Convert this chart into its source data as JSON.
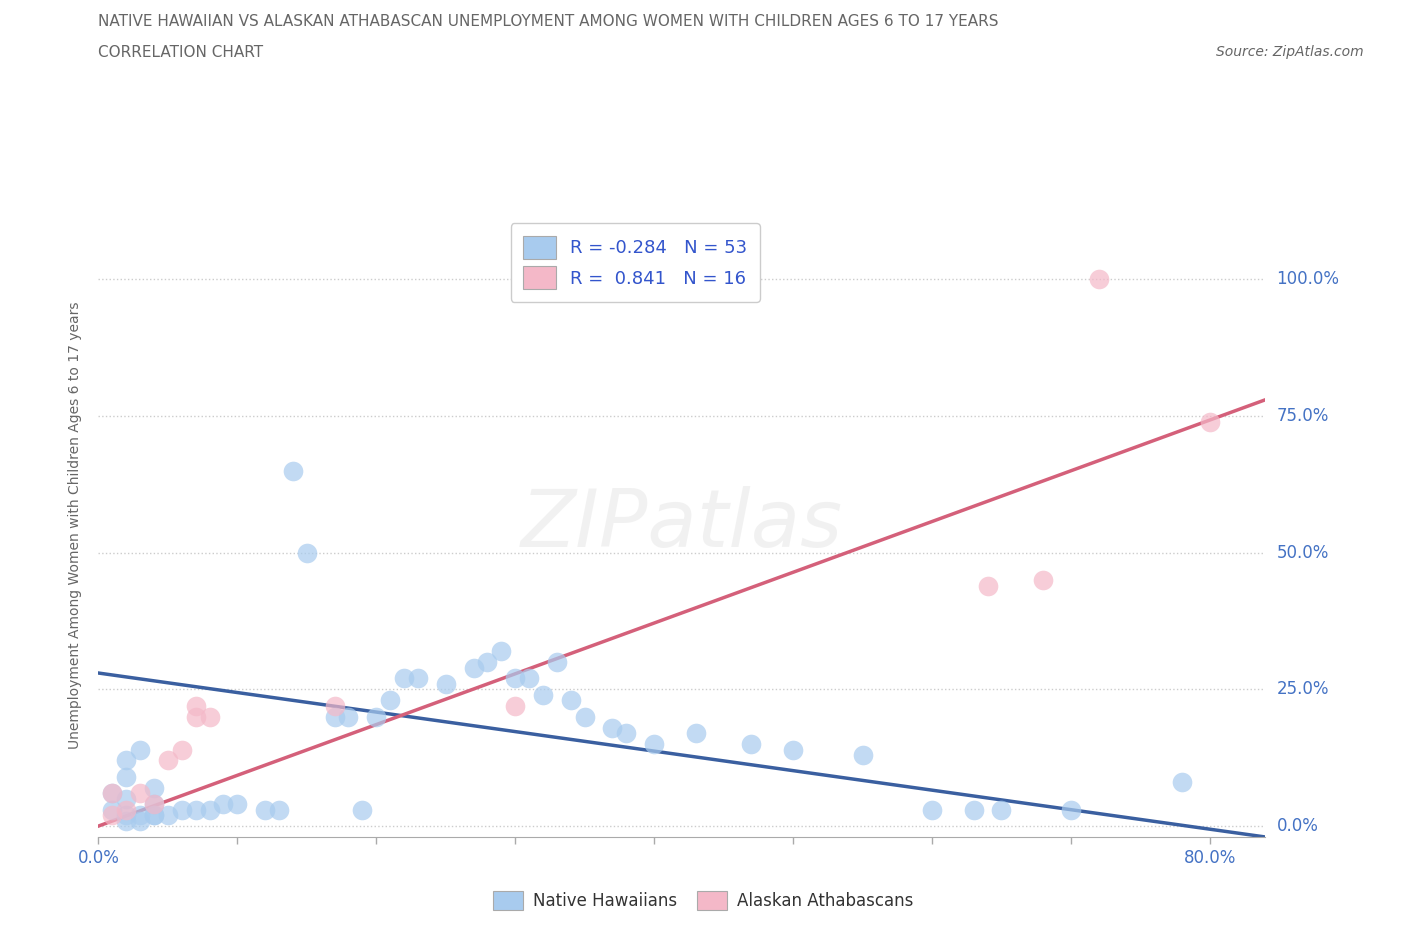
{
  "title_line1": "NATIVE HAWAIIAN VS ALASKAN ATHABASCAN UNEMPLOYMENT AMONG WOMEN WITH CHILDREN AGES 6 TO 17 YEARS",
  "title_line2": "CORRELATION CHART",
  "source_text": "Source: ZipAtlas.com",
  "ylabel_ticks_vals": [
    0.0,
    0.25,
    0.5,
    0.75,
    1.0
  ],
  "ylabel_ticks_labels": [
    "0.0%",
    "25.0%",
    "50.0%",
    "75.0%",
    "100.0%"
  ],
  "xtick_first": "0.0%",
  "xtick_last": "80.0%",
  "ylabel_label": "Unemployment Among Women with Children Ages 6 to 17 years",
  "xlim": [
    0.0,
    0.84
  ],
  "ylim": [
    -0.02,
    1.12
  ],
  "legend_label1": "Native Hawaiians",
  "legend_label2": "Alaskan Athabascans",
  "r1": "-0.284",
  "n1": "53",
  "r2": "0.841",
  "n2": "16",
  "color_blue": "#A8CBEE",
  "color_pink": "#F4B8C8",
  "line_color_blue": "#3A5FA0",
  "line_color_pink": "#D4607A",
  "watermark": "ZIPatlas",
  "blue_x": [
    0.01,
    0.01,
    0.02,
    0.02,
    0.02,
    0.02,
    0.02,
    0.03,
    0.03,
    0.03,
    0.04,
    0.04,
    0.04,
    0.04,
    0.05,
    0.06,
    0.07,
    0.08,
    0.09,
    0.1,
    0.12,
    0.13,
    0.14,
    0.15,
    0.17,
    0.18,
    0.19,
    0.2,
    0.21,
    0.22,
    0.23,
    0.25,
    0.27,
    0.28,
    0.29,
    0.3,
    0.31,
    0.32,
    0.33,
    0.34,
    0.35,
    0.37,
    0.38,
    0.4,
    0.43,
    0.47,
    0.5,
    0.55,
    0.6,
    0.63,
    0.65,
    0.7,
    0.78
  ],
  "blue_y": [
    0.03,
    0.06,
    0.01,
    0.02,
    0.05,
    0.09,
    0.12,
    0.01,
    0.02,
    0.14,
    0.02,
    0.04,
    0.07,
    0.02,
    0.02,
    0.03,
    0.03,
    0.03,
    0.04,
    0.04,
    0.03,
    0.03,
    0.65,
    0.5,
    0.2,
    0.2,
    0.03,
    0.2,
    0.23,
    0.27,
    0.27,
    0.26,
    0.29,
    0.3,
    0.32,
    0.27,
    0.27,
    0.24,
    0.3,
    0.23,
    0.2,
    0.18,
    0.17,
    0.15,
    0.17,
    0.15,
    0.14,
    0.13,
    0.03,
    0.03,
    0.03,
    0.03,
    0.08
  ],
  "pink_x": [
    0.01,
    0.01,
    0.02,
    0.03,
    0.04,
    0.05,
    0.06,
    0.07,
    0.07,
    0.08,
    0.17,
    0.3,
    0.64,
    0.68,
    0.72,
    0.8
  ],
  "pink_y": [
    0.02,
    0.06,
    0.03,
    0.06,
    0.04,
    0.12,
    0.14,
    0.2,
    0.22,
    0.2,
    0.22,
    0.22,
    0.44,
    0.45,
    1.0,
    0.74
  ],
  "trend_blue_x0": 0.0,
  "trend_blue_y0": 0.28,
  "trend_blue_x1": 0.84,
  "trend_blue_y1": -0.02,
  "trend_pink_x0": 0.0,
  "trend_pink_y0": 0.0,
  "trend_pink_x1": 0.84,
  "trend_pink_y1": 0.78,
  "grid_color": "#CCCCCC",
  "background_color": "#FFFFFF",
  "title_color": "#666666",
  "right_label_color": "#4472C4"
}
